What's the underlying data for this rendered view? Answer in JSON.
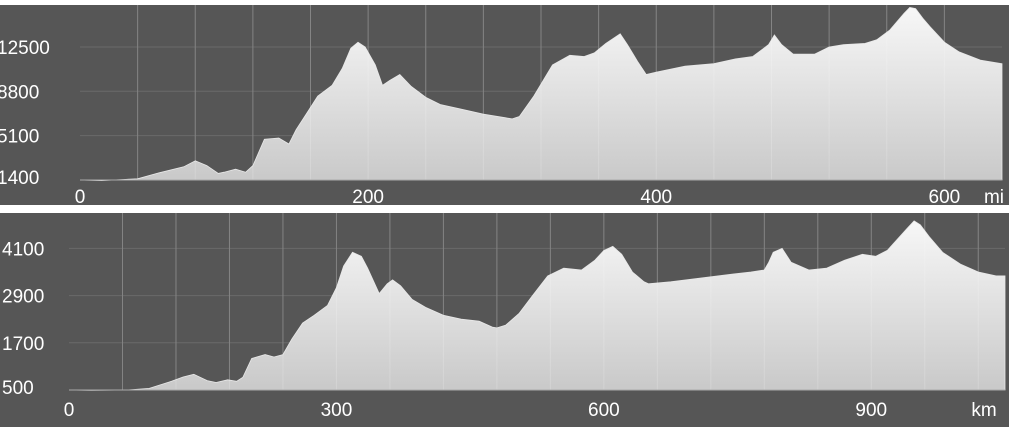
{
  "colors": {
    "plot_background": "#565656",
    "gridline": "#6a6a6a",
    "area_top": "#f7f7f7",
    "area_bottom": "#c9c9c9",
    "axis_baseline": "#aaaaaa",
    "label_text": "#ffffff"
  },
  "chart_data": [
    {
      "type": "area",
      "title": "",
      "xlabel": "",
      "ylabel": "",
      "x_unit": "mi",
      "xlim": [
        0,
        640
      ],
      "ylim": [
        1400,
        16000
      ],
      "x_ticks": [
        0,
        200,
        400,
        600
      ],
      "x_tick_labels": [
        "0",
        "200",
        "400",
        "600"
      ],
      "y_ticks": [
        1400,
        5100,
        8800,
        12500
      ],
      "y_tick_labels": [
        "1400",
        "5100",
        "8800",
        "12500"
      ],
      "grid": true,
      "series": [
        {
          "x": [
            0,
            15,
            40,
            55,
            72,
            80,
            88,
            96,
            100,
            108,
            115,
            120,
            128,
            138,
            145,
            150,
            157,
            165,
            175,
            182,
            188,
            193,
            198,
            205,
            210,
            215,
            222,
            230,
            240,
            250,
            265,
            280,
            295,
            300,
            305,
            315,
            328,
            340,
            350,
            357,
            365,
            375,
            380,
            387,
            393,
            400,
            420,
            440,
            455,
            467,
            478,
            482,
            487,
            495,
            510,
            520,
            530,
            545,
            553,
            562,
            572,
            576,
            580,
            585,
            590,
            600,
            610,
            625,
            640
          ],
          "y": [
            1400,
            1350,
            1500,
            2000,
            2500,
            3000,
            2600,
            1950,
            2050,
            2300,
            2050,
            2600,
            4800,
            4900,
            4400,
            5600,
            6900,
            8400,
            9300,
            10700,
            12400,
            12900,
            12500,
            11000,
            9300,
            9700,
            10200,
            9200,
            8300,
            7700,
            7300,
            6900,
            6600,
            6500,
            6700,
            8400,
            11000,
            11800,
            11700,
            12000,
            12800,
            13600,
            12700,
            11300,
            10200,
            10400,
            10900,
            11100,
            11500,
            11700,
            12700,
            13500,
            12700,
            11900,
            11900,
            12500,
            12700,
            12800,
            13100,
            13900,
            15300,
            15800,
            15700,
            14900,
            14200,
            12900,
            12100,
            11400,
            11100
          ]
        }
      ]
    },
    {
      "type": "area",
      "title": "",
      "xlabel": "",
      "ylabel": "",
      "x_unit": "km",
      "xlim": [
        0,
        1050
      ],
      "ylim": [
        500,
        5000
      ],
      "x_ticks": [
        0,
        300,
        600,
        900
      ],
      "x_tick_labels": [
        "0",
        "300",
        "600",
        "900"
      ],
      "y_ticks": [
        500,
        1700,
        2900,
        4100
      ],
      "y_tick_labels": [
        "500",
        "1700",
        "2900",
        "4100"
      ],
      "grid": true,
      "series": [
        {
          "x": [
            0,
            25,
            65,
            90,
            115,
            128,
            140,
            155,
            165,
            178,
            188,
            195,
            205,
            220,
            230,
            240,
            250,
            262,
            275,
            290,
            300,
            308,
            318,
            328,
            335,
            348,
            357,
            363,
            372,
            385,
            400,
            420,
            440,
            460,
            475,
            480,
            490,
            505,
            520,
            537,
            555,
            575,
            590,
            600,
            610,
            620,
            632,
            645,
            650,
            675,
            710,
            745,
            765,
            780,
            785,
            790,
            800,
            810,
            830,
            850,
            870,
            890,
            905,
            918,
            940,
            948,
            955,
            965,
            980,
            1000,
            1020,
            1040,
            1050
          ],
          "y": [
            500,
            490,
            500,
            540,
            720,
            830,
            900,
            740,
            690,
            760,
            720,
            820,
            1300,
            1400,
            1340,
            1400,
            1800,
            2200,
            2400,
            2650,
            3100,
            3650,
            4000,
            3900,
            3600,
            2950,
            3200,
            3300,
            3150,
            2800,
            2600,
            2400,
            2300,
            2250,
            2100,
            2080,
            2150,
            2450,
            2900,
            3400,
            3600,
            3550,
            3800,
            4050,
            4150,
            3950,
            3500,
            3250,
            3200,
            3250,
            3350,
            3450,
            3500,
            3550,
            3750,
            4000,
            4100,
            3750,
            3550,
            3600,
            3800,
            3950,
            3900,
            4050,
            4600,
            4800,
            4700,
            4400,
            4000,
            3700,
            3500,
            3400,
            3400
          ]
        }
      ]
    }
  ]
}
